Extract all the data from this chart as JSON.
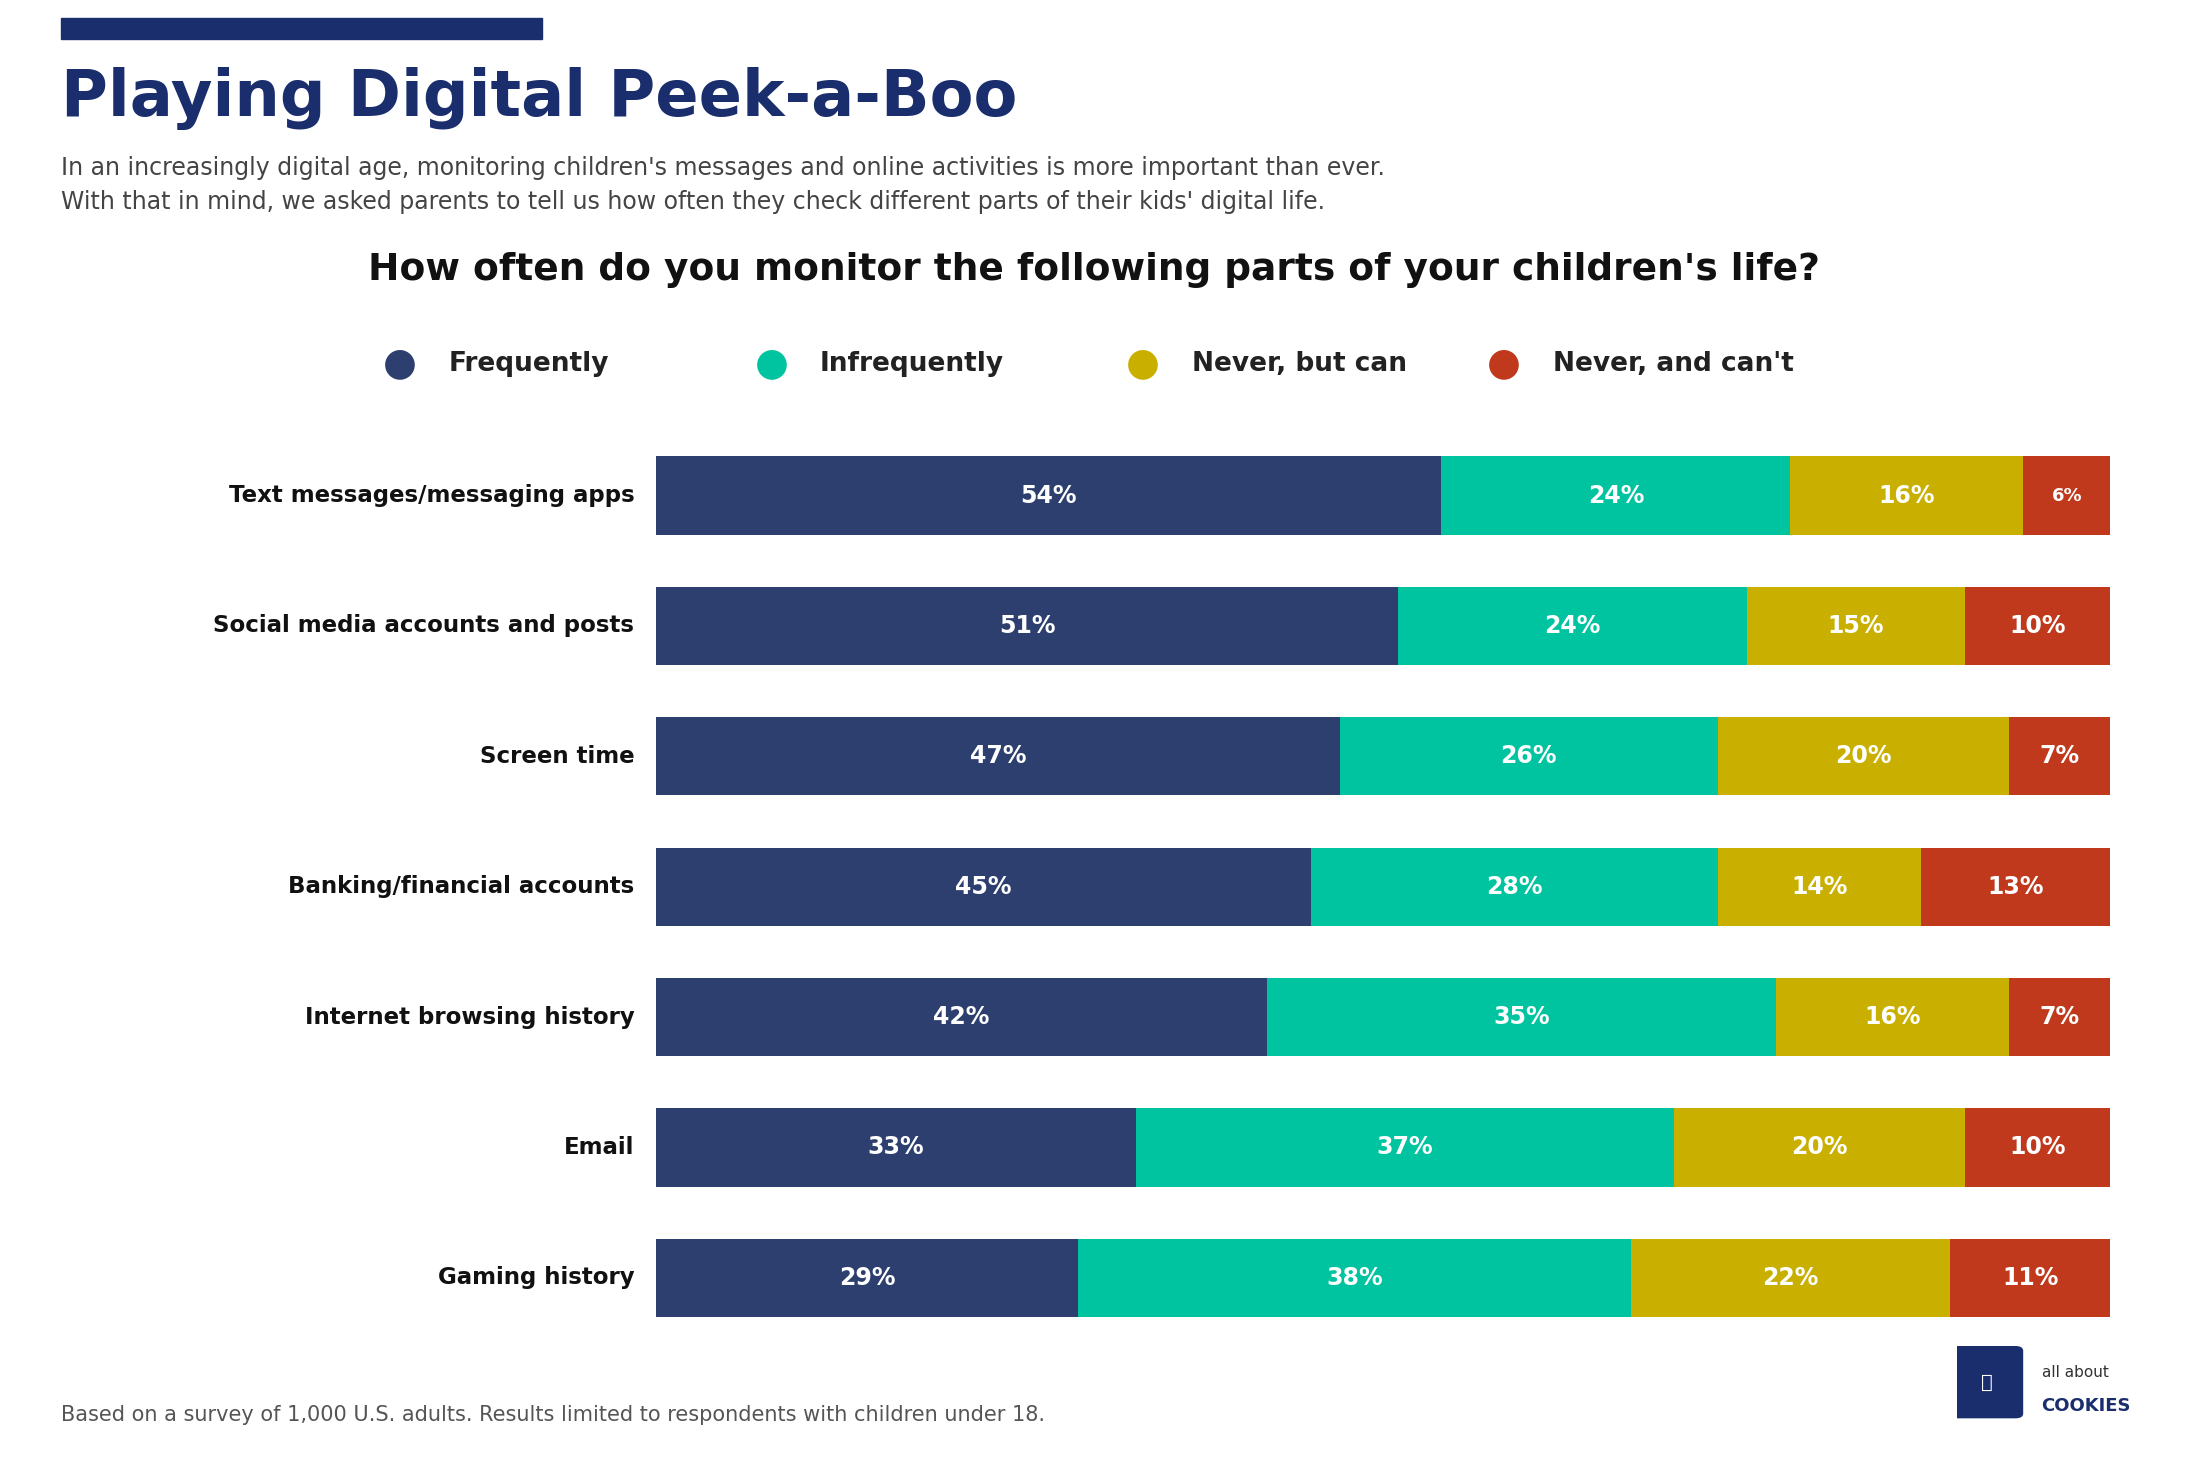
{
  "title": "Playing Digital Peek-a-Boo",
  "subtitle_line1": "In an increasingly digital age, monitoring children's messages and online activities is more important than ever.",
  "subtitle_line2": "With that in mind, we asked parents to tell us how often they check different parts of their kids' digital life.",
  "question": "How often do you monitor the following parts of your children's life?",
  "legend_labels": [
    "Frequently",
    "Infrequently",
    "Never, but can",
    "Never, and can't"
  ],
  "colors": [
    "#2d3f6f",
    "#00c4a0",
    "#c9b000",
    "#c0391c"
  ],
  "categories": [
    "Text messages/messaging apps",
    "Social media accounts and posts",
    "Screen time",
    "Banking/financial accounts",
    "Internet browsing history",
    "Email",
    "Gaming history"
  ],
  "data": [
    [
      54,
      24,
      16,
      6
    ],
    [
      51,
      24,
      15,
      10
    ],
    [
      47,
      26,
      20,
      7
    ],
    [
      45,
      28,
      14,
      13
    ],
    [
      42,
      35,
      16,
      7
    ],
    [
      33,
      37,
      20,
      10
    ],
    [
      29,
      38,
      22,
      11
    ]
  ],
  "footnote": "Based on a survey of 1,000 U.S. adults. Results limited to respondents with children under 18.",
  "background_color": "#ffffff",
  "title_color": "#1a2e6e",
  "subtitle_color": "#444444",
  "question_color": "#111111",
  "bar_text_color": "#ffffff",
  "category_text_color": "#111111",
  "top_bar_color": "#1a2e6e"
}
